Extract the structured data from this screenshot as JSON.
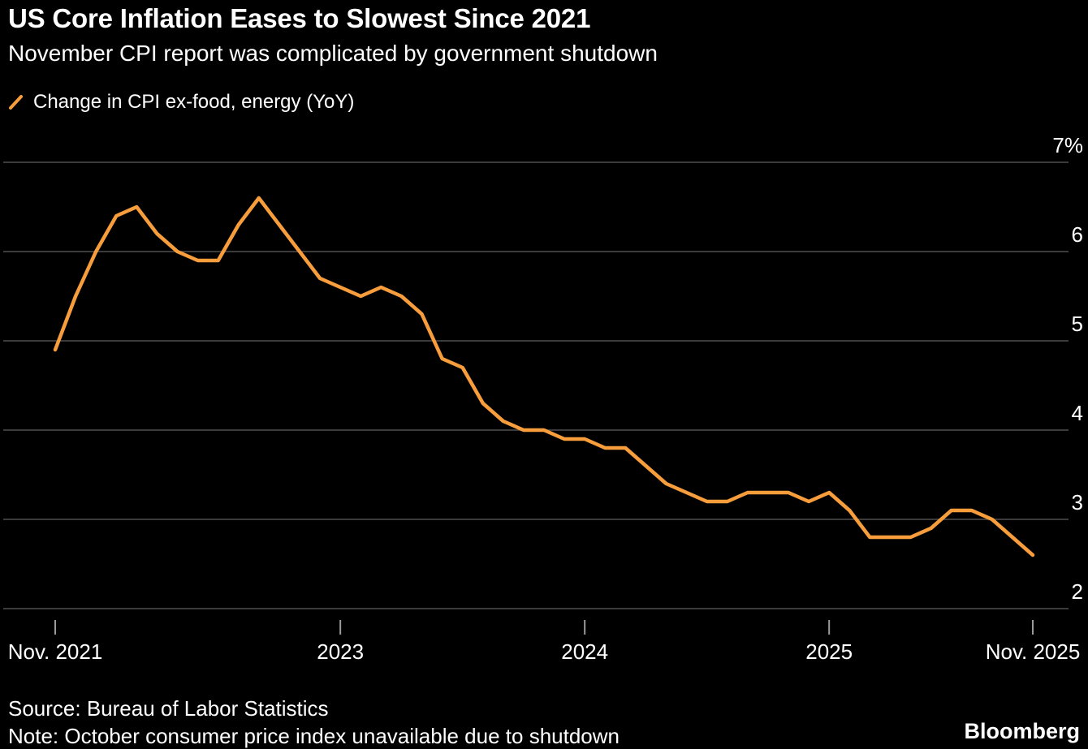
{
  "header": {
    "title": "US Core Inflation Eases to Slowest Since 2021",
    "subtitle": "November CPI report was complicated by government shutdown"
  },
  "legend": {
    "label": "Change in CPI ex-food, energy (YoY)"
  },
  "footer": {
    "source": "Source: Bureau of Labor Statistics",
    "note": "Note: October consumer price index unavailable due to shutdown",
    "brand": "Bloomberg"
  },
  "colors": {
    "background": "#000000",
    "line": "#F79D3C",
    "gridline": "#4F4F4F",
    "tick": "#9A9A9A",
    "text": "#FFFFFF"
  },
  "chart_data": {
    "type": "line",
    "title": "US Core Inflation Eases to Slowest Since 2021",
    "subtitle": "November CPI report was complicated by government shutdown",
    "legend_entries": [
      "Change in CPI ex-food, energy (YoY)"
    ],
    "legend_position": "top-left",
    "grid": "horizontal",
    "ylim": [
      2,
      7
    ],
    "yticks": [
      7,
      6,
      5,
      4,
      3,
      2
    ],
    "ytick_labels": [
      "7%",
      "6",
      "5",
      "4",
      "3",
      "2"
    ],
    "xlim": [
      0,
      48
    ],
    "xticks": [
      {
        "label": "Nov. 2021",
        "m": 0
      },
      {
        "label": "2023",
        "m": 14
      },
      {
        "label": "2024",
        "m": 26
      },
      {
        "label": "2025",
        "m": 38
      },
      {
        "label": "Nov. 2025",
        "m": 48
      }
    ],
    "series": [
      {
        "name": "Change in CPI ex-food, energy (YoY)",
        "color": "#F79D3C",
        "points": [
          [
            0,
            4.9
          ],
          [
            1,
            5.5
          ],
          [
            2,
            6.0
          ],
          [
            3,
            6.4
          ],
          [
            4,
            6.5
          ],
          [
            5,
            6.2
          ],
          [
            6,
            6.0
          ],
          [
            7,
            5.9
          ],
          [
            8,
            5.9
          ],
          [
            9,
            6.3
          ],
          [
            10,
            6.6
          ],
          [
            11,
            6.3
          ],
          [
            12,
            6.0
          ],
          [
            13,
            5.7
          ],
          [
            14,
            5.6
          ],
          [
            15,
            5.5
          ],
          [
            16,
            5.6
          ],
          [
            17,
            5.5
          ],
          [
            18,
            5.3
          ],
          [
            19,
            4.8
          ],
          [
            20,
            4.7
          ],
          [
            21,
            4.3
          ],
          [
            22,
            4.1
          ],
          [
            23,
            4.0
          ],
          [
            24,
            4.0
          ],
          [
            25,
            3.9
          ],
          [
            26,
            3.9
          ],
          [
            27,
            3.8
          ],
          [
            28,
            3.8
          ],
          [
            29,
            3.6
          ],
          [
            30,
            3.4
          ],
          [
            31,
            3.3
          ],
          [
            32,
            3.2
          ],
          [
            33,
            3.2
          ],
          [
            34,
            3.3
          ],
          [
            35,
            3.3
          ],
          [
            36,
            3.3
          ],
          [
            37,
            3.2
          ],
          [
            38,
            3.3
          ],
          [
            39,
            3.1
          ],
          [
            40,
            2.8
          ],
          [
            41,
            2.8
          ],
          [
            42,
            2.8
          ],
          [
            43,
            2.9
          ],
          [
            44,
            3.1
          ],
          [
            45,
            3.1
          ],
          [
            46,
            3.0
          ],
          [
            48,
            2.6
          ]
        ]
      }
    ]
  }
}
